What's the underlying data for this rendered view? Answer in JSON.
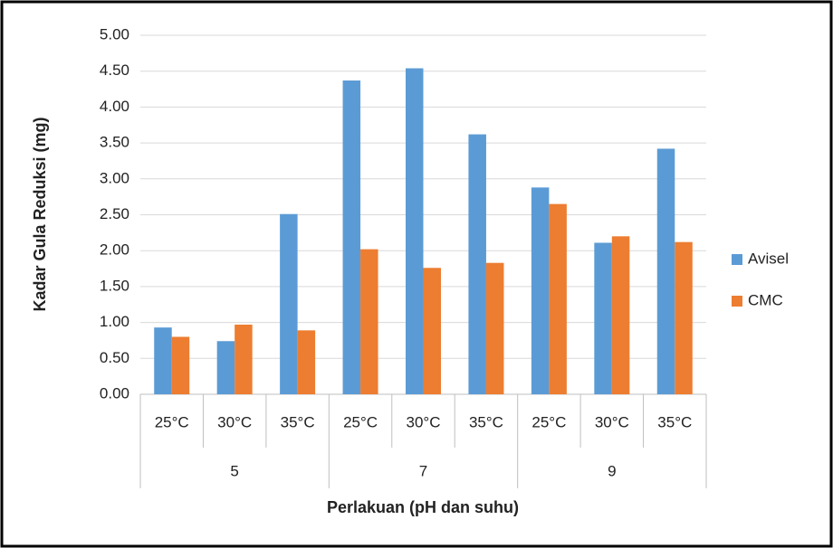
{
  "chart_data": {
    "type": "bar",
    "y_label": "Kadar Gula Reduksi (mg)",
    "x_label": "Perlakuan (pH dan suhu)",
    "categories": [
      "25°C",
      "30°C",
      "35°C",
      "25°C",
      "30°C",
      "35°C",
      "25°C",
      "30°C",
      "35°C"
    ],
    "groups": [
      "5",
      "7",
      "9"
    ],
    "series": [
      {
        "name": "Avisel",
        "color": "#5b9bd5",
        "values": [
          0.93,
          0.74,
          2.51,
          4.37,
          4.54,
          3.62,
          2.88,
          2.11,
          3.42
        ]
      },
      {
        "name": "CMC",
        "color": "#ed7d31",
        "values": [
          0.8,
          0.97,
          0.89,
          2.02,
          1.76,
          1.83,
          2.65,
          2.2,
          2.12
        ]
      }
    ],
    "ylim": [
      0,
      5
    ],
    "yticks": [
      {
        "value": 0,
        "label": "0.00"
      },
      {
        "value": 0.5,
        "label": "0.50"
      },
      {
        "value": 1,
        "label": "1.00"
      },
      {
        "value": 1.5,
        "label": "1.50"
      },
      {
        "value": 2,
        "label": "2.00"
      },
      {
        "value": 2.5,
        "label": "2.50"
      },
      {
        "value": 3,
        "label": "3.00"
      },
      {
        "value": 3.5,
        "label": "3.50"
      },
      {
        "value": 4,
        "label": "4.00"
      },
      {
        "value": 4.5,
        "label": "4.50"
      },
      {
        "value": 5,
        "label": "5.00"
      }
    ],
    "grid": true,
    "legend": "right"
  }
}
